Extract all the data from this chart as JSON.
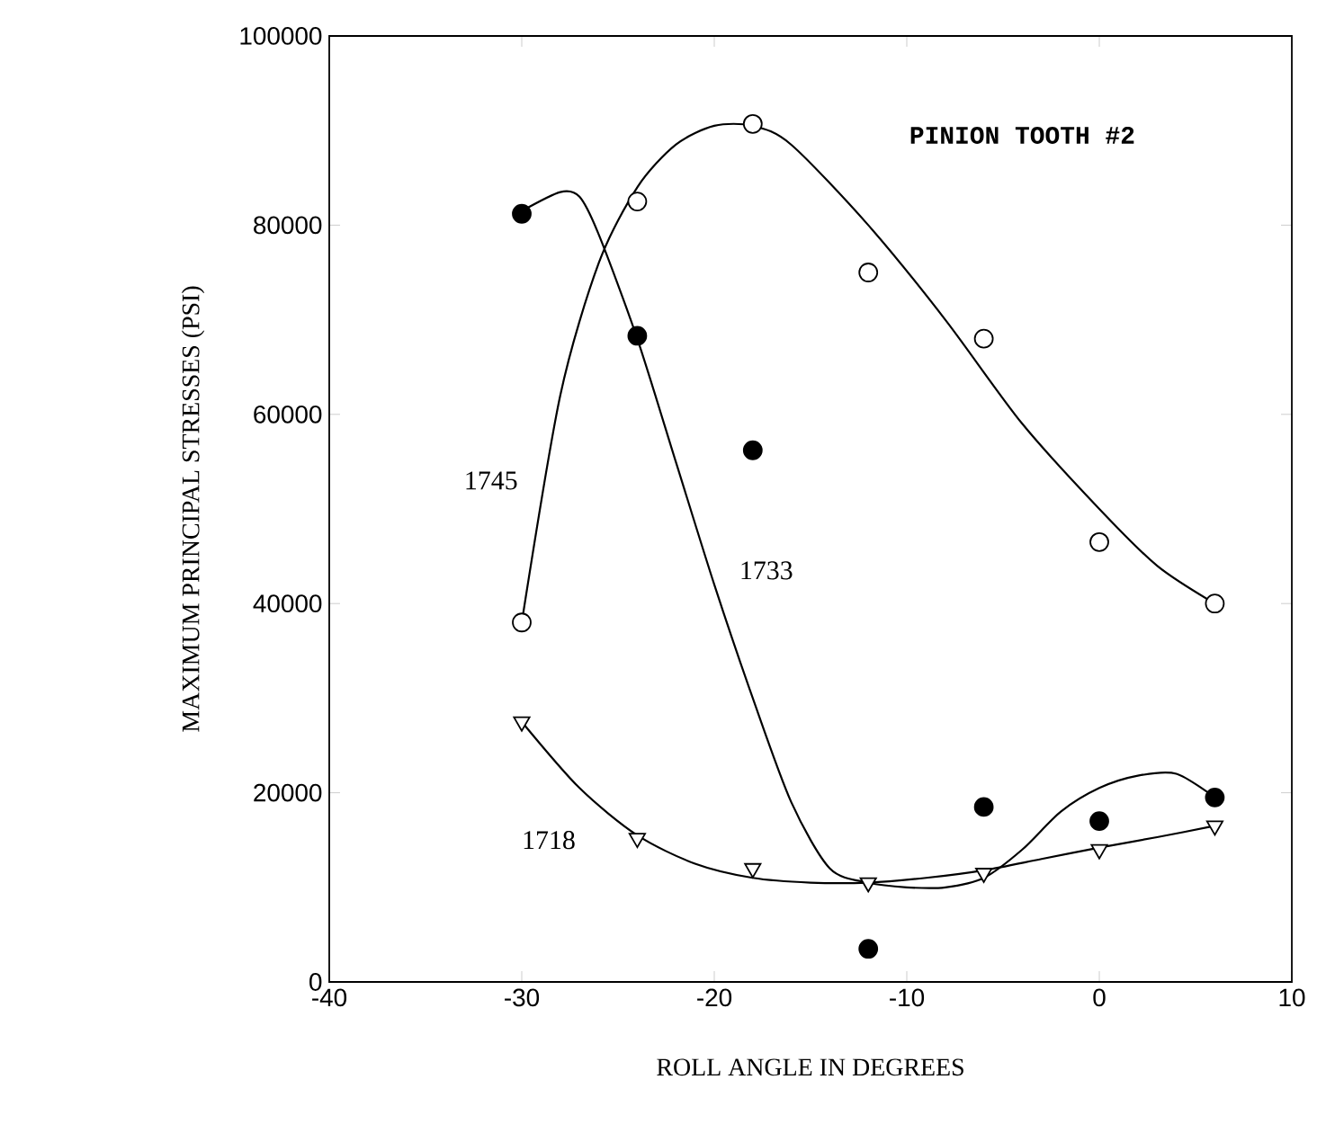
{
  "chart_data": {
    "type": "scatter",
    "xlabel": "ROLL ANGLE IN DEGREES",
    "ylabel": "MAXIMUM PRINCIPAL STRESSES (PSI)",
    "annotations": [
      "PINION TOOTH #2"
    ],
    "xlim": [
      -40,
      10
    ],
    "xticks": [
      -40,
      -30,
      -20,
      -10,
      0,
      10
    ],
    "ylim": [
      0,
      100000
    ],
    "yticks": [
      0,
      20000,
      40000,
      60000,
      80000,
      100000
    ],
    "grid": false,
    "series": [
      {
        "name": "1745",
        "type": "line",
        "color": "#000000",
        "marker": "none",
        "line_style": "solid",
        "x": [
          -30,
          -28,
          -26,
          -24,
          -22,
          -20,
          -18,
          -16,
          -12,
          -8,
          -4,
          0,
          3,
          6
        ],
        "values": [
          38000,
          62000,
          76000,
          84000,
          88500,
          90500,
          90500,
          88500,
          80000,
          70000,
          59000,
          50000,
          44000,
          40000
        ]
      },
      {
        "color": "#000000",
        "marker": "circle",
        "x": [
          -30,
          -24,
          -18,
          -12,
          -6,
          0,
          6
        ],
        "values": [
          38000,
          82500,
          90700,
          75000,
          68000,
          46500,
          40000
        ]
      },
      {
        "name": "1733",
        "type": "line",
        "color": "#000000",
        "marker": "none",
        "line_style": "solid",
        "x": [
          -30,
          -28,
          -27,
          -26,
          -24,
          -22,
          -20,
          -18,
          -16,
          -14,
          -12,
          -10,
          -8,
          -6,
          -4,
          -2,
          0,
          2,
          4,
          6
        ],
        "values": [
          81500,
          83500,
          83000,
          79000,
          68000,
          55000,
          42000,
          30000,
          19000,
          12000,
          10500,
          10000,
          10000,
          11000,
          14000,
          18000,
          20500,
          21800,
          22000,
          19500
        ]
      },
      {
        "color": "#000000",
        "marker": "circle",
        "x": [
          -30,
          -24,
          -18,
          -12,
          -6,
          0,
          6
        ],
        "values": [
          81200,
          68300,
          56200,
          3500,
          18500,
          17000,
          19500
        ]
      },
      {
        "name": "1718",
        "type": "line",
        "color": "#000000",
        "marker": "none",
        "line_style": "solid",
        "x": [
          -30,
          -27,
          -24,
          -21,
          -18,
          -15,
          -12,
          -9,
          -6,
          -3,
          0,
          3,
          6
        ],
        "values": [
          27500,
          20500,
          15500,
          12500,
          11000,
          10500,
          10500,
          11000,
          11800,
          13000,
          14200,
          15300,
          16500
        ]
      },
      {
        "color": "#000000",
        "marker": "triangle",
        "x": [
          -30,
          -24,
          -18,
          -12,
          -6,
          0,
          6
        ],
        "values": [
          27500,
          15200,
          12000,
          10500,
          11500,
          14000,
          16500
        ]
      }
    ]
  }
}
